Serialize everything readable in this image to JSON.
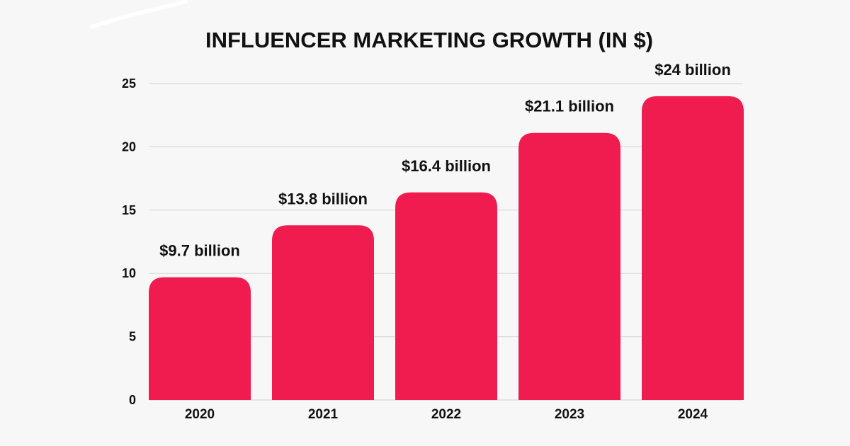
{
  "colors": {
    "background": "#f7f7f7",
    "bar": "#f01c4f",
    "gridline": "#d9d9d9",
    "text": "#111111"
  },
  "chart_data": {
    "type": "bar",
    "title": "INFLUENCER MARKETING GROWTH (IN $)",
    "xlabel": "",
    "ylabel": "",
    "categories": [
      "2020",
      "2021",
      "2022",
      "2023",
      "2024"
    ],
    "values": [
      9.7,
      13.8,
      16.4,
      21.1,
      24
    ],
    "data_labels": [
      "$9.7 billion",
      "$13.8 billion",
      "$16.4 billion",
      "$21.1 billion",
      "$24 billion"
    ],
    "ylim": [
      0,
      25
    ],
    "yticks": [
      0,
      5,
      10,
      15,
      20,
      25
    ],
    "grid": true,
    "legend": "none"
  }
}
